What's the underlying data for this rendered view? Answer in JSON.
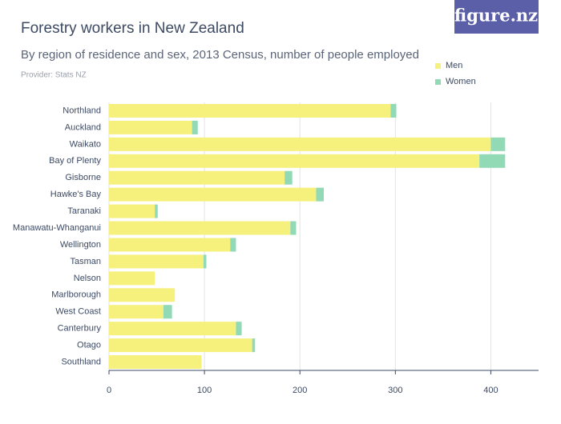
{
  "chart_data": {
    "type": "stacked_bar_horizontal",
    "title": "Forestry workers in New Zealand",
    "subtitle": "By region of residence and sex, 2013 Census, number of people employed",
    "provider": "Provider: Stats NZ",
    "logo": "figure.nz",
    "categories": [
      "Northland",
      "Auckland",
      "Waikato",
      "Bay of Plenty",
      "Gisborne",
      "Hawke's Bay",
      "Taranaki",
      "Manawatu-Whanganui",
      "Wellington",
      "Tasman",
      "Nelson",
      "Marlborough",
      "West Coast",
      "Canterbury",
      "Otago",
      "Southland"
    ],
    "series": [
      {
        "name": "Men",
        "color": "#f6f07d",
        "values": [
          295,
          87,
          400,
          388,
          184,
          217,
          48,
          190,
          127,
          99,
          48,
          69,
          57,
          133,
          150,
          97
        ]
      },
      {
        "name": "Women",
        "color": "#92d9b6",
        "values": [
          6,
          6,
          15,
          27,
          8,
          8,
          3,
          6,
          6,
          3,
          0,
          0,
          9,
          6,
          3,
          0
        ]
      }
    ],
    "xlim": [
      0,
      450
    ],
    "xticks": [
      0,
      100,
      200,
      300,
      400
    ],
    "grid": true
  }
}
